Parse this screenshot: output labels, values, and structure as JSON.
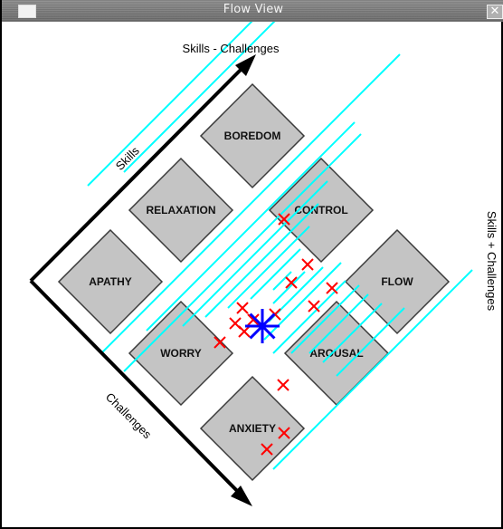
{
  "window": {
    "title": "Flow View",
    "close_glyph": "✕"
  },
  "axes": {
    "top": "Skills - Challenges",
    "upper_left": "Skills",
    "lower_left": "Challenges",
    "right": "Skills + Challenges"
  },
  "states": [
    "BOREDOM",
    "RELAXATION",
    "CONTROL",
    "APATHY",
    "FLOW",
    "WORRY",
    "AROUSAL",
    "ANXIETY"
  ],
  "colors": {
    "state_fill": "#c4c4c4",
    "band_line": "#00ffff",
    "sample_marker": "#ff0000",
    "current_marker": "#0000ff",
    "axis_arrow": "#000000"
  },
  "icons": {
    "menu": "window-menu-icon",
    "close": "close-icon",
    "sample": "x-marker-icon",
    "current": "asterisk-marker-icon"
  },
  "samples": {
    "count": 16
  }
}
